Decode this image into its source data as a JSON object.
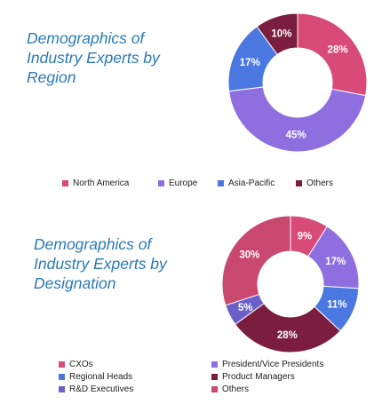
{
  "chart_data": [
    {
      "type": "pie",
      "title": [
        "Demographics of",
        "Industry Experts by",
        "Region"
      ],
      "categories": [
        "North America",
        "Europe",
        "Asia-Pacific",
        "Others"
      ],
      "values": [
        28,
        45,
        17,
        10
      ],
      "labels": [
        "28%",
        "45%",
        "17%",
        "10%"
      ],
      "colors": [
        "#d84a78",
        "#8f6fe0",
        "#4a78e0",
        "#7a1d3e"
      ],
      "legend": "bottom"
    },
    {
      "type": "pie",
      "title": [
        "Demographics of",
        "Industry Experts by",
        "Designation"
      ],
      "categories": [
        "CXOs",
        "President/Vice Presidents",
        "Regional Heads",
        "Product Managers",
        "R&D Executives",
        "Others"
      ],
      "values": [
        9,
        17,
        11,
        28,
        5,
        30
      ],
      "labels": [
        "9%",
        "17%",
        "11%",
        "28%",
        "5%",
        "30%"
      ],
      "colors": [
        "#d84a78",
        "#8f6fe0",
        "#4a78e0",
        "#7a1d3e",
        "#6a5fc8",
        "#c84870"
      ],
      "legend": "bottom"
    }
  ]
}
